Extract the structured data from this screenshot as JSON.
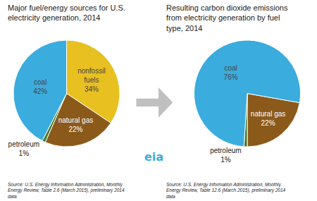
{
  "chart_data": [
    {
      "type": "pie",
      "title": "Major fuel/energy sources for U.S.\nelectricity generation, 2014",
      "categories": [
        "nonfossil\nfuels",
        "natural gas",
        "petroleum",
        "coal"
      ],
      "values": [
        34,
        22,
        1,
        42
      ],
      "value_labels": [
        "34%",
        "22%",
        "1%",
        "42%"
      ],
      "colors": [
        "#E8C020",
        "#8B5A1A",
        "#4A7A2A",
        "#3AACDE"
      ],
      "data_labels": true,
      "annotations": [
        "Source: U.S. Energy Information Administration, Monthly\nEnergy Review, Table 2.6 (March 2015), preliminary 2014\ndata",
        "eia"
      ]
    },
    {
      "type": "pie",
      "title": "Resulting carbon dioxide emissions\nfrom electricity generation by fuel\ntype, 2014",
      "categories": [
        "natural gas",
        "petroleum",
        "coal"
      ],
      "values": [
        22,
        1,
        76
      ],
      "value_labels": [
        "22%",
        "1%",
        "76%"
      ],
      "colors": [
        "#8B5A1A",
        "#4A7A2A",
        "#3AACDE"
      ],
      "data_labels": true,
      "annotations": [
        "Source: U.S. Energy Information Administration, Monthly\nEnergy Review, Table 12.6 (March 2015), preliminary 2014\ndata"
      ]
    }
  ]
}
